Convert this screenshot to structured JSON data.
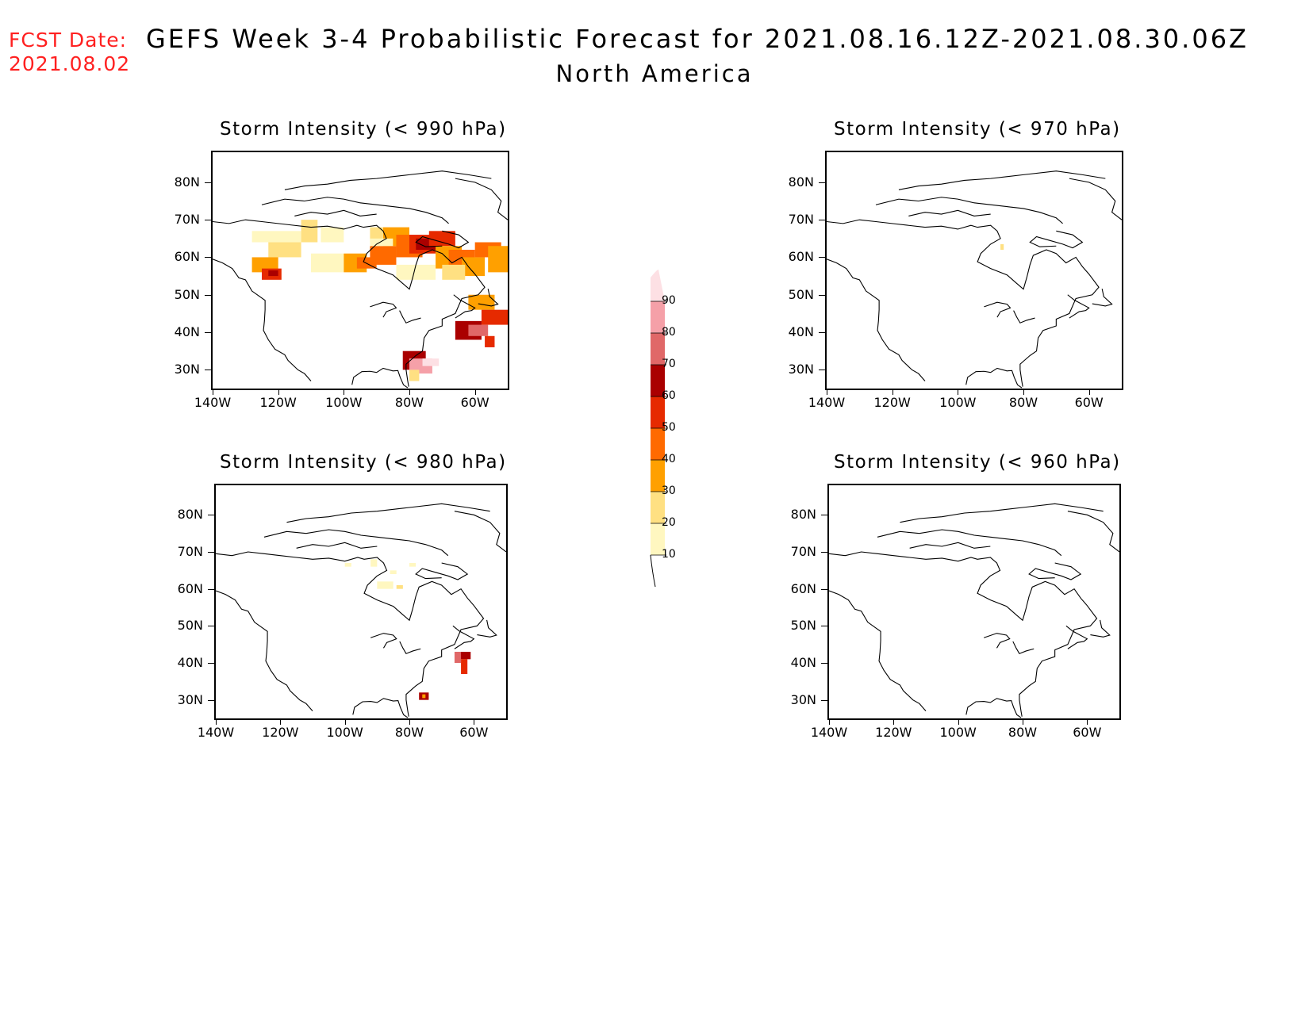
{
  "header": {
    "fcst_label": "FCST Date:",
    "fcst_date": "2021.08.02",
    "title": "GEFS Week 3-4 Probabilistic Forecast for 2021.08.16.12Z-2021.08.30.06Z",
    "subtitle": "North America"
  },
  "axes": {
    "lat_labels": [
      "80N",
      "70N",
      "60N",
      "50N",
      "40N",
      "30N"
    ],
    "lon_labels": [
      "140W",
      "120W",
      "100W",
      "80W",
      "60W"
    ]
  },
  "panels": [
    {
      "id": "p990",
      "title": "Storm Intensity (< 990 hPa)"
    },
    {
      "id": "p970",
      "title": "Storm Intensity (< 970 hPa)"
    },
    {
      "id": "p980",
      "title": "Storm Intensity (< 980 hPa)"
    },
    {
      "id": "p960",
      "title": "Storm Intensity (< 960 hPa)"
    }
  ],
  "colorbar": {
    "levels": [
      "10",
      "20",
      "30",
      "40",
      "50",
      "60",
      "70",
      "80",
      "90"
    ],
    "colors": [
      "#fff7c0",
      "#ffe082",
      "#ffa000",
      "#ff6a00",
      "#e62a00",
      "#aa0000",
      "#e06868",
      "#f5a0a8",
      "#fde0e4"
    ]
  }
}
